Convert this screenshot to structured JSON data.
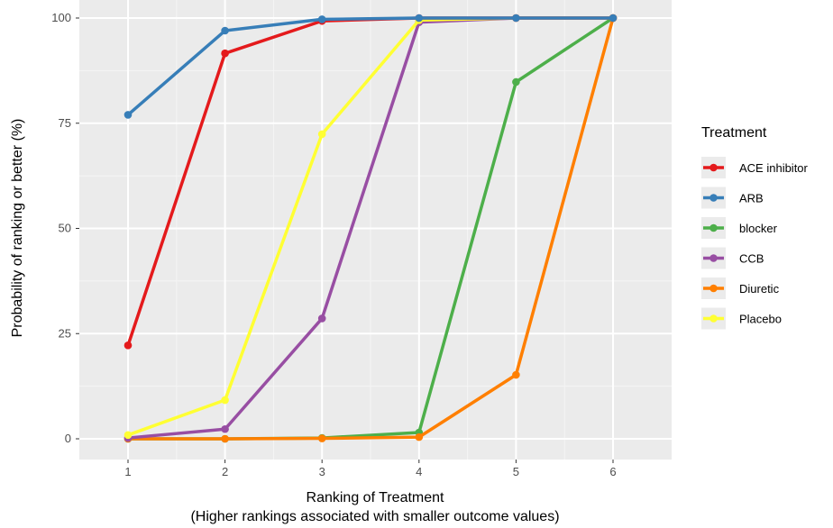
{
  "chart_data": {
    "type": "line",
    "xlabel": "Ranking of Treatment",
    "xlabel_sub": "(Higher rankings associated with smaller outcome values)",
    "ylabel": "Probability of ranking or better (%)",
    "x": [
      1,
      2,
      3,
      4,
      5,
      6
    ],
    "xticks": [
      "1",
      "2",
      "3",
      "4",
      "5",
      "6"
    ],
    "yticks": [
      "0",
      "25",
      "50",
      "75",
      "100"
    ],
    "xlim": [
      0.5,
      6.5
    ],
    "ylim": [
      -5,
      100
    ],
    "grid": true,
    "panel_background": "#ebebeb",
    "legend_title": "Treatment",
    "legend_position": "right",
    "series": [
      {
        "name": "ACE inhibitor",
        "color": "#e41a1c",
        "values": [
          22.2,
          91.6,
          99.3,
          100,
          100,
          100
        ]
      },
      {
        "name": "ARB",
        "color": "#377eb8",
        "values": [
          77.0,
          97.0,
          99.7,
          100,
          100,
          100
        ]
      },
      {
        "name": "blocker",
        "color": "#4daf4a",
        "values": [
          0,
          0,
          0.2,
          1.5,
          84.8,
          100
        ]
      },
      {
        "name": "CCB",
        "color": "#984ea3",
        "values": [
          0.2,
          2.3,
          28.6,
          99.0,
          100,
          100
        ]
      },
      {
        "name": "Diuretic",
        "color": "#ff7f00",
        "values": [
          0,
          0,
          0.1,
          0.4,
          15.2,
          100
        ]
      },
      {
        "name": "Placebo",
        "color": "#ffff33",
        "values": [
          0.9,
          9.2,
          72.4,
          99.5,
          100,
          100
        ]
      }
    ]
  }
}
